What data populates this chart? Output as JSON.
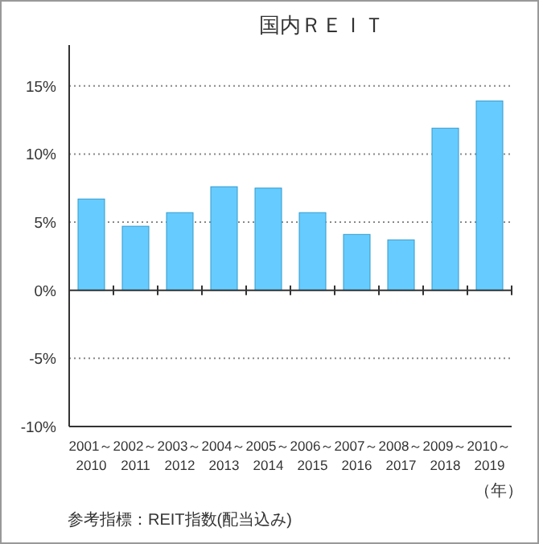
{
  "chart_data": {
    "type": "bar",
    "title": "国内ＲＥＩＴ",
    "xlabel": "（年）",
    "categories": [
      "2001～\n2010",
      "2002～\n2011",
      "2003～\n2012",
      "2004～\n2013",
      "2005～\n2014",
      "2006～\n2015",
      "2007～\n2016",
      "2008～\n2017",
      "2009～\n2018",
      "2010～\n2019"
    ],
    "values": [
      6.7,
      4.7,
      5.7,
      7.6,
      7.5,
      5.7,
      4.1,
      3.7,
      11.9,
      13.9
    ],
    "color": "#66ccff",
    "ylim": [
      -10,
      18
    ],
    "yticks": [
      {
        "value": -10,
        "label": "-10%"
      },
      {
        "value": -5,
        "label": "-5%"
      },
      {
        "value": 0,
        "label": "0%"
      },
      {
        "value": 5,
        "label": "5%"
      },
      {
        "value": 10,
        "label": "10%"
      },
      {
        "value": 15,
        "label": "15%"
      }
    ],
    "grid": "y",
    "annotations": [
      "参考指標：REIT指数(配当込み)"
    ]
  }
}
